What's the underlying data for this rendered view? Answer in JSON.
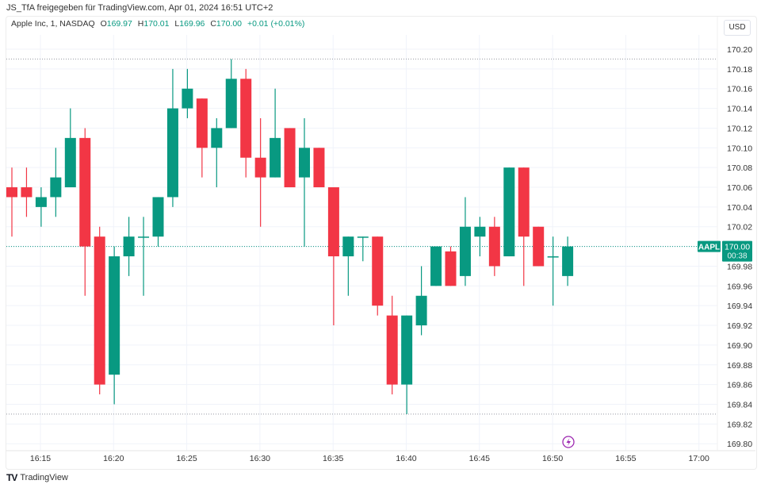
{
  "caption": "JS_TfA freigegeben für TradingView.com, Apr 01, 2024 16:51 UTC+2",
  "legend": {
    "symbol": "Apple Inc, 1, NASDAQ",
    "o_label": "O",
    "o_value": "169.97",
    "h_label": "H",
    "h_value": "170.01",
    "l_label": "L",
    "l_value": "169.96",
    "c_label": "C",
    "c_value": "170.00",
    "change": "+0.01 (+0.01%)"
  },
  "currency_button": "USD",
  "last_price": {
    "ticker": "AAPL",
    "price": "170.00",
    "countdown": "00:38"
  },
  "footer": {
    "logo": "TV",
    "brand": "TradingView"
  },
  "colors": {
    "up": "#089981",
    "down": "#f23645",
    "grid": "#f0f3fa",
    "last_price_line": "#089981",
    "alert_icon": "#9c27b0"
  },
  "chart_data": {
    "type": "candlestick",
    "title": "Apple Inc, 1, NASDAQ",
    "xlabel": "",
    "ylabel": "USD",
    "ylim": [
      169.8,
      170.2
    ],
    "y_ticks": [
      "170.20",
      "170.18",
      "170.16",
      "170.14",
      "170.12",
      "170.10",
      "170.08",
      "170.06",
      "170.04",
      "170.02",
      "170.00",
      "169.98",
      "169.96",
      "169.94",
      "169.92",
      "169.90",
      "169.88",
      "169.86",
      "169.84",
      "169.82",
      "169.80"
    ],
    "x_ticks": [
      "16:15",
      "16:20",
      "16:25",
      "16:30",
      "16:35",
      "16:40",
      "16:45",
      "16:50",
      "16:55",
      "17:00"
    ],
    "grid": true,
    "reference_lines": {
      "high": 170.19,
      "low": 169.83,
      "last": 170.0
    },
    "candles": [
      {
        "t": "16:13",
        "o": 170.06,
        "h": 170.08,
        "l": 170.01,
        "c": 170.05
      },
      {
        "t": "16:14",
        "o": 170.06,
        "h": 170.08,
        "l": 170.03,
        "c": 170.05
      },
      {
        "t": "16:15",
        "o": 170.04,
        "h": 170.06,
        "l": 170.02,
        "c": 170.05
      },
      {
        "t": "16:16",
        "o": 170.05,
        "h": 170.1,
        "l": 170.03,
        "c": 170.07
      },
      {
        "t": "16:17",
        "o": 170.06,
        "h": 170.14,
        "l": 170.06,
        "c": 170.11
      },
      {
        "t": "16:18",
        "o": 170.11,
        "h": 170.12,
        "l": 169.95,
        "c": 170.0
      },
      {
        "t": "16:19",
        "o": 170.01,
        "h": 170.02,
        "l": 169.85,
        "c": 169.86
      },
      {
        "t": "16:20",
        "o": 169.87,
        "h": 170.0,
        "l": 169.84,
        "c": 169.99
      },
      {
        "t": "16:21",
        "o": 169.99,
        "h": 170.03,
        "l": 169.97,
        "c": 170.01
      },
      {
        "t": "16:22",
        "o": 170.01,
        "h": 170.03,
        "l": 169.95,
        "c": 170.01
      },
      {
        "t": "16:23",
        "o": 170.01,
        "h": 170.05,
        "l": 170.0,
        "c": 170.05
      },
      {
        "t": "16:24",
        "o": 170.05,
        "h": 170.18,
        "l": 170.04,
        "c": 170.14
      },
      {
        "t": "16:25",
        "o": 170.14,
        "h": 170.18,
        "l": 170.13,
        "c": 170.16
      },
      {
        "t": "16:26",
        "o": 170.15,
        "h": 170.15,
        "l": 170.07,
        "c": 170.1
      },
      {
        "t": "16:27",
        "o": 170.1,
        "h": 170.13,
        "l": 170.06,
        "c": 170.12
      },
      {
        "t": "16:28",
        "o": 170.12,
        "h": 170.19,
        "l": 170.12,
        "c": 170.17
      },
      {
        "t": "16:29",
        "o": 170.17,
        "h": 170.18,
        "l": 170.07,
        "c": 170.09
      },
      {
        "t": "16:30",
        "o": 170.09,
        "h": 170.13,
        "l": 170.02,
        "c": 170.07
      },
      {
        "t": "16:31",
        "o": 170.07,
        "h": 170.16,
        "l": 170.07,
        "c": 170.11
      },
      {
        "t": "16:32",
        "o": 170.12,
        "h": 170.12,
        "l": 170.06,
        "c": 170.06
      },
      {
        "t": "16:33",
        "o": 170.07,
        "h": 170.13,
        "l": 170.0,
        "c": 170.1
      },
      {
        "t": "16:34",
        "o": 170.1,
        "h": 170.1,
        "l": 170.06,
        "c": 170.06
      },
      {
        "t": "16:35",
        "o": 170.06,
        "h": 170.06,
        "l": 169.92,
        "c": 169.99
      },
      {
        "t": "16:36",
        "o": 169.99,
        "h": 170.01,
        "l": 169.95,
        "c": 170.01
      },
      {
        "t": "16:37",
        "o": 170.01,
        "h": 170.01,
        "l": 169.985,
        "c": 170.01
      },
      {
        "t": "16:38",
        "o": 170.01,
        "h": 170.01,
        "l": 169.93,
        "c": 169.94
      },
      {
        "t": "16:39",
        "o": 169.93,
        "h": 169.95,
        "l": 169.85,
        "c": 169.86
      },
      {
        "t": "16:40",
        "o": 169.86,
        "h": 169.93,
        "l": 169.83,
        "c": 169.93
      },
      {
        "t": "16:41",
        "o": 169.92,
        "h": 169.98,
        "l": 169.91,
        "c": 169.95
      },
      {
        "t": "16:42",
        "o": 169.96,
        "h": 170.0,
        "l": 169.96,
        "c": 170.0
      },
      {
        "t": "16:43",
        "o": 169.995,
        "h": 170.0,
        "l": 169.96,
        "c": 169.96
      },
      {
        "t": "16:44",
        "o": 169.97,
        "h": 170.05,
        "l": 169.96,
        "c": 170.02
      },
      {
        "t": "16:45",
        "o": 170.01,
        "h": 170.03,
        "l": 169.99,
        "c": 170.02
      },
      {
        "t": "16:46",
        "o": 170.02,
        "h": 170.03,
        "l": 169.97,
        "c": 169.98
      },
      {
        "t": "16:47",
        "o": 169.99,
        "h": 170.08,
        "l": 169.99,
        "c": 170.08
      },
      {
        "t": "16:48",
        "o": 170.08,
        "h": 170.08,
        "l": 169.96,
        "c": 170.01
      },
      {
        "t": "16:49",
        "o": 170.02,
        "h": 170.02,
        "l": 169.98,
        "c": 169.98
      },
      {
        "t": "16:50",
        "o": 169.99,
        "h": 170.01,
        "l": 169.94,
        "c": 169.99
      },
      {
        "t": "16:51",
        "o": 169.97,
        "h": 170.01,
        "l": 169.96,
        "c": 170.0
      }
    ]
  }
}
